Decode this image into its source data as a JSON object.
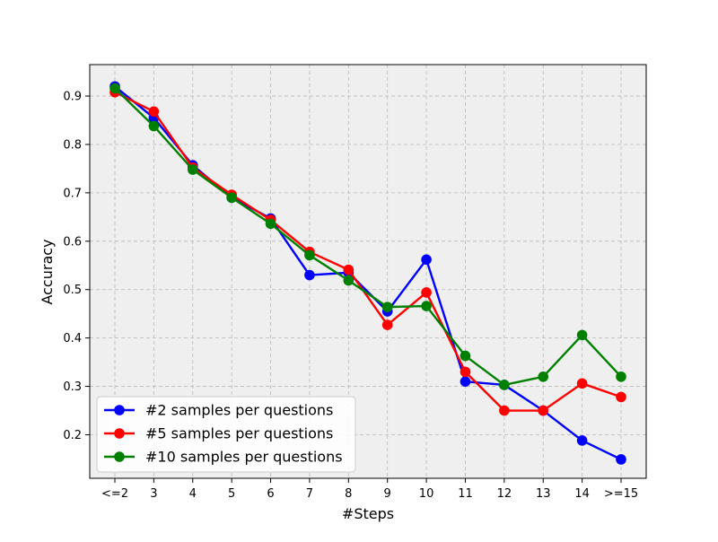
{
  "chart_data": {
    "type": "line",
    "title": "",
    "xlabel": "#Steps",
    "ylabel": "Accuracy",
    "categories": [
      "<=2",
      "3",
      "4",
      "5",
      "6",
      "7",
      "8",
      "9",
      "10",
      "11",
      "12",
      "13",
      "14",
      ">=15"
    ],
    "ylim": [
      0.11,
      0.965
    ],
    "yticks": [
      0.2,
      0.3,
      0.4,
      0.5,
      0.6,
      0.7,
      0.8,
      0.9
    ],
    "ytick_labels": [
      "0.2",
      "0.3",
      "0.4",
      "0.5",
      "0.6",
      "0.7",
      "0.8",
      "0.9"
    ],
    "grid": true,
    "legend_position": "lower-left",
    "background_color": "#efefef",
    "series": [
      {
        "name": "#2 samples per questions",
        "color": "#0000ff",
        "values": [
          0.92,
          0.855,
          0.757,
          0.69,
          0.647,
          0.53,
          0.535,
          0.455,
          0.562,
          0.31,
          0.303,
          0.25,
          0.188,
          0.149
        ]
      },
      {
        "name": "#5 samples per questions",
        "color": "#ff0000",
        "values": [
          0.908,
          0.868,
          0.752,
          0.696,
          0.644,
          0.578,
          0.541,
          0.427,
          0.494,
          0.33,
          0.25,
          0.25,
          0.306,
          0.278
        ]
      },
      {
        "name": "#10 samples per questions",
        "color": "#008000",
        "values": [
          0.916,
          0.838,
          0.748,
          0.69,
          0.636,
          0.571,
          0.519,
          0.464,
          0.466,
          0.363,
          0.303,
          0.32,
          0.406,
          0.32
        ]
      }
    ]
  }
}
